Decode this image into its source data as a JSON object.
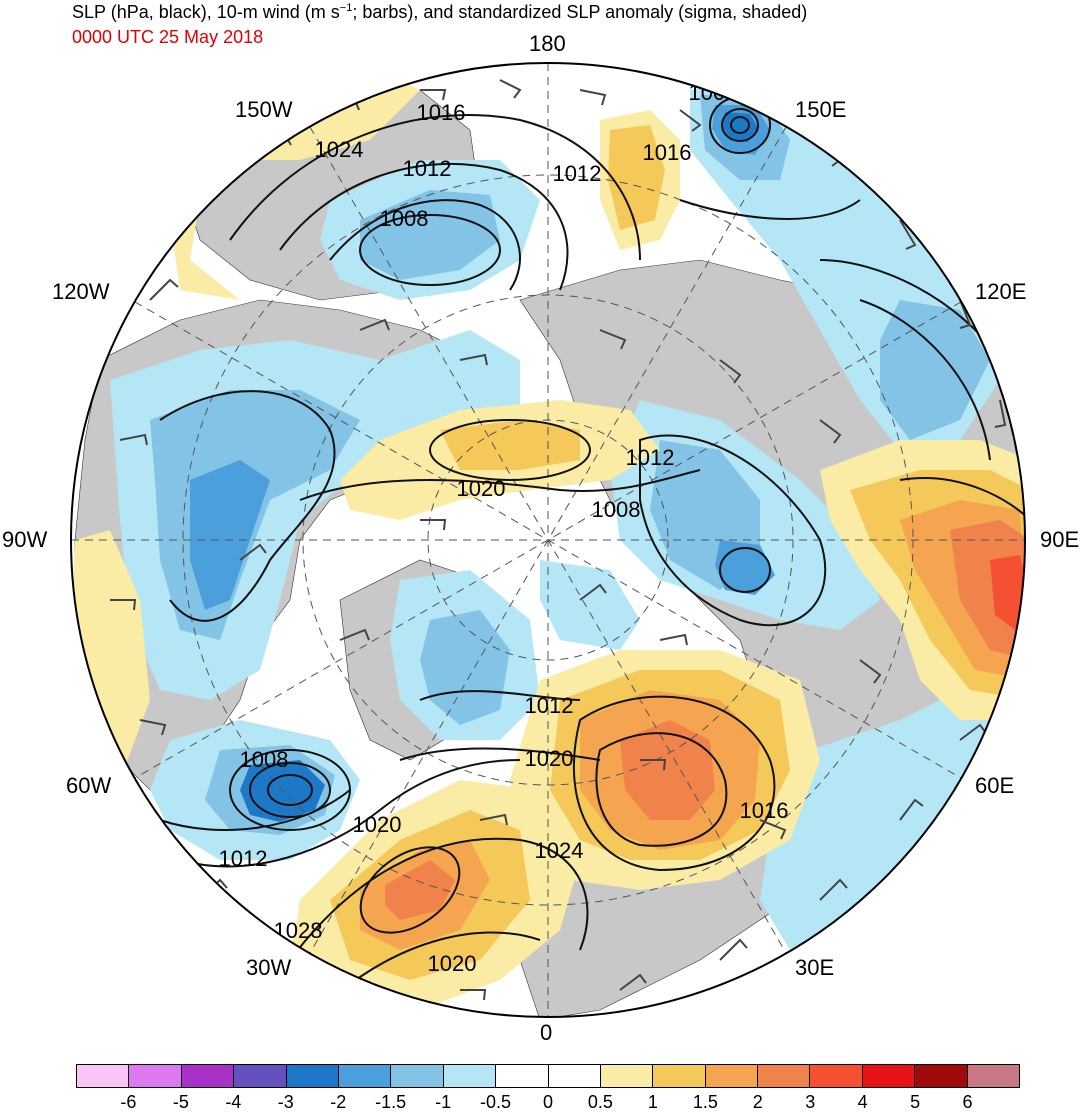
{
  "title": {
    "line1_pre": "SLP (hPa, black), 10-m wind (m s",
    "line1_sup": "−1",
    "line1_post": "; barbs), and standardized SLP anomaly (sigma, shaded)",
    "date": "0000 UTC 25 May 2018"
  },
  "longitude_labels": {
    "top": "180",
    "bottom": "0",
    "left": "90W",
    "right": "90E",
    "w150": "150W",
    "e150": "150E",
    "w120": "120W",
    "e120": "120E",
    "w60": "60W",
    "e60": "60E",
    "w30": "30W",
    "e30": "30E"
  },
  "isobar_labels": [
    "1008",
    "1016",
    "1024",
    "1012",
    "1008",
    "1012",
    "1016",
    "1012",
    "1020",
    "1008",
    "1012",
    "1020",
    "1016",
    "1008",
    "1020",
    "1012",
    "1024",
    "1028",
    "1020"
  ],
  "colorbar": {
    "colors": [
      "#f7c6f7",
      "#dc78f0",
      "#a832c8",
      "#6450be",
      "#1e78c8",
      "#4ba0dc",
      "#82c3e6",
      "#b4e6f5",
      "#ffffff",
      "#ffffff",
      "#faeba5",
      "#f5c85a",
      "#f5a550",
      "#f0824b",
      "#f55032",
      "#e61414",
      "#a00a0a",
      "#c87882"
    ],
    "ticks": [
      "-6",
      "-5",
      "-4",
      "-3",
      "-2",
      "-1.5",
      "-1",
      "-0.5",
      "0",
      "0.5",
      "1",
      "1.5",
      "2",
      "3",
      "4",
      "5",
      "6"
    ]
  },
  "colors": {
    "land": "#c8c8c8",
    "neg_light": "#b4e6f5",
    "neg_mid": "#82c3e6",
    "neg_dark": "#4ba0dc",
    "neg_deep": "#1e78c8",
    "pos_light": "#faeba5",
    "pos_mid": "#f5c85a",
    "pos_dark": "#f5a550",
    "pos_deep": "#f0824b",
    "pos_red": "#f55032",
    "date_red": "#e00000"
  }
}
